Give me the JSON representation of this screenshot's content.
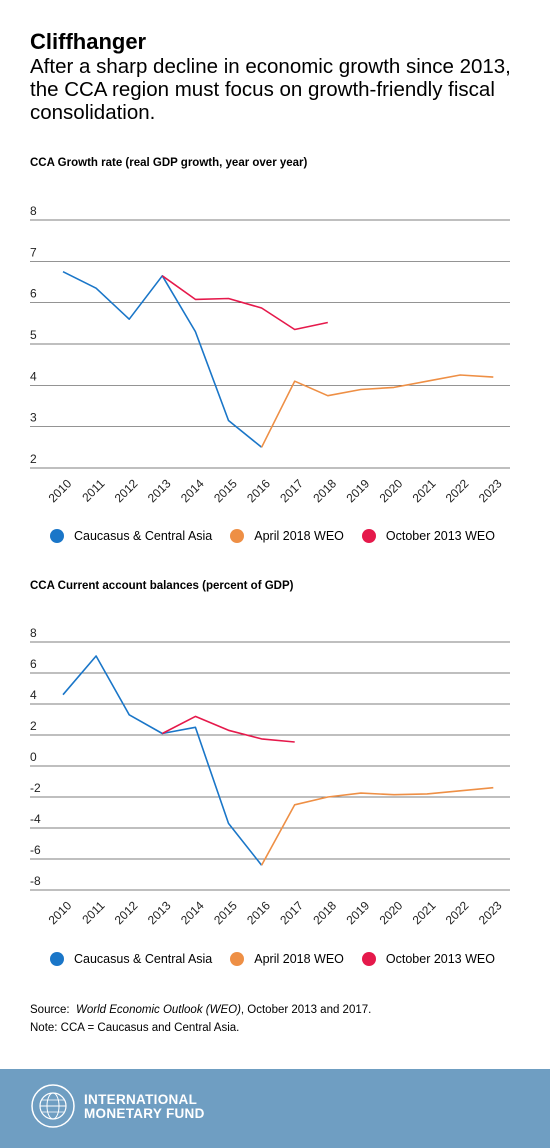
{
  "header": {
    "title": "Cliffhanger",
    "subtitle": "After a sharp decline in economic growth since 2013, the CCA region must focus on growth-friendly fiscal consolidation."
  },
  "legend": {
    "items": [
      {
        "label": "Caucasus & Central Asia",
        "color": "#1a76c8"
      },
      {
        "label": "April 2018 WEO",
        "color": "#ee8f45"
      },
      {
        "label": "October 2013 WEO",
        "color": "#e5194b"
      }
    ]
  },
  "source": {
    "prefix": "Source:",
    "italic": "World Economic Outlook (WEO)",
    "rest": ", October 2013 and 2017."
  },
  "note": "Note: CCA = Caucasus and Central Asia.",
  "footer": {
    "line1": "INTERNATIONAL",
    "line2": "MONETARY FUND",
    "logo_icon": "imf-seal-icon"
  },
  "chart_data": [
    {
      "type": "line",
      "title": "CCA Growth rate (real GDP growth, year over year)",
      "x": [
        "2010",
        "2011",
        "2012",
        "2013",
        "2014",
        "2015",
        "2016",
        "2017",
        "2018",
        "2019",
        "2020",
        "2021",
        "2022",
        "2023"
      ],
      "ylim": [
        2,
        8
      ],
      "yticks": [
        "8",
        "7",
        "6",
        "5",
        "4",
        "3",
        "2"
      ],
      "grid": true,
      "legend_position": "bottom",
      "series": [
        {
          "name": "Caucasus & Central Asia",
          "color": "#1a76c8",
          "values": [
            6.75,
            6.35,
            5.6,
            6.65,
            5.3,
            3.15,
            2.5,
            null,
            null,
            null,
            null,
            null,
            null,
            null
          ]
        },
        {
          "name": "April 2018 WEO",
          "color": "#ee8f45",
          "values": [
            null,
            null,
            null,
            null,
            null,
            null,
            2.5,
            4.1,
            3.75,
            3.9,
            3.95,
            4.1,
            4.25,
            4.2
          ]
        },
        {
          "name": "October 2013 WEO",
          "color": "#e5194b",
          "values": [
            null,
            null,
            null,
            6.65,
            6.08,
            6.1,
            5.87,
            5.35,
            5.52,
            null,
            null,
            null,
            null,
            null
          ]
        }
      ]
    },
    {
      "type": "line",
      "title": "CCA Current account balances (percent of GDP)",
      "x": [
        "2010",
        "2011",
        "2012",
        "2013",
        "2014",
        "2015",
        "2016",
        "2017",
        "2018",
        "2019",
        "2020",
        "2021",
        "2022",
        "2023"
      ],
      "ylim": [
        -8,
        8
      ],
      "yticks": [
        "8",
        "6",
        "4",
        "2",
        "0",
        "-2",
        "-4",
        "-6",
        "-8"
      ],
      "grid": true,
      "legend_position": "bottom",
      "series": [
        {
          "name": "Caucasus & Central Asia",
          "color": "#1a76c8",
          "values": [
            4.6,
            7.1,
            3.3,
            2.1,
            2.5,
            -3.7,
            -6.4,
            null,
            null,
            null,
            null,
            null,
            null,
            null
          ]
        },
        {
          "name": "April 2018 WEO",
          "color": "#ee8f45",
          "values": [
            null,
            null,
            null,
            null,
            null,
            null,
            -6.4,
            -2.5,
            -2.0,
            -1.75,
            -1.85,
            -1.8,
            -1.6,
            -1.4
          ]
        },
        {
          "name": "October 2013 WEO",
          "color": "#e5194b",
          "values": [
            null,
            null,
            null,
            2.1,
            3.2,
            2.3,
            1.75,
            1.55,
            null,
            null,
            null,
            null,
            null,
            null
          ]
        }
      ]
    }
  ]
}
